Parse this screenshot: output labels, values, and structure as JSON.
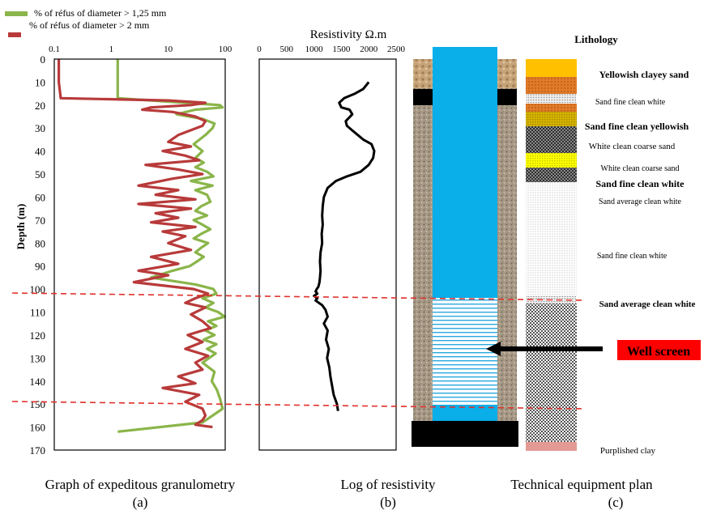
{
  "legend": {
    "green_label": "% of  réfus  of diameter  > 1,25 mm",
    "red_label": "% of réfus of diameter > 2 mm",
    "green_color": "#8ab54a",
    "red_color": "#b83a3a"
  },
  "depth_axis": {
    "label": "Depth (m)",
    "ticks": [
      "0",
      "10",
      "20",
      "30",
      "40",
      "50",
      "60",
      "70",
      "80",
      "90",
      "100",
      "110",
      "120",
      "130",
      "140",
      "150",
      "160",
      "170"
    ]
  },
  "gran_axis": {
    "ticks": [
      "0.1",
      "1",
      "10",
      "100"
    ]
  },
  "res_axis": {
    "title": "Resistivity Ω.m",
    "ticks": [
      "0",
      "500",
      "1000",
      "1500",
      "2000",
      "2500"
    ]
  },
  "captions": {
    "a_title": "Graph of expeditous granulometry",
    "a_letter": "(a)",
    "b_title": "Log of resistivity",
    "b_letter": "(b)",
    "c_title": "Technical equipment plan",
    "c_letter": "(c)"
  },
  "lithology": {
    "title": "Lithology",
    "labels": [
      "Yellowish clayey sand",
      "Sand fine clean white",
      "Sand fine clean yellowish",
      "White clean coarse sand",
      "White clean coarse sand",
      "Sand fine clean white",
      "Sand average clean white",
      "Sand fine clean white",
      "Sand average clean white",
      "Purplished clay"
    ]
  },
  "well_screen_label": "Well screen",
  "colors": {
    "casing": "#0aaee8",
    "well_screen_bg": "#ff0000",
    "dash": "#e0312b"
  },
  "chart_data": [
    {
      "type": "line",
      "title": "",
      "xlabel": "",
      "ylabel": "Depth (m)",
      "x_scale": "log",
      "xlim": [
        0.1,
        100
      ],
      "ylim": [
        170,
        0
      ],
      "series": [
        {
          "name": "% of  réfus  of diameter  > 1,25 mm",
          "x": [
            1.3,
            1.3,
            1.3,
            20,
            80,
            90,
            30,
            14,
            40,
            65,
            60,
            45,
            28,
            40,
            30,
            42,
            30,
            48,
            62,
            25,
            60,
            30,
            48,
            55,
            38,
            30,
            48,
            28,
            40,
            55,
            38,
            28,
            50,
            38,
            30,
            42,
            32,
            24,
            12,
            5,
            30,
            62,
            70,
            40,
            62,
            45,
            75,
            98,
            50,
            70,
            45,
            65,
            42,
            70,
            48,
            68,
            40,
            65,
            58,
            72,
            82,
            90,
            40,
            1.3
          ],
          "y": [
            0,
            10,
            17,
            19,
            20,
            21,
            22,
            24,
            26,
            28,
            30,
            33,
            37,
            40,
            43,
            45,
            47,
            49,
            51,
            53,
            55,
            57,
            59,
            62,
            64,
            66,
            68,
            70,
            72,
            74,
            76,
            78,
            80,
            82,
            84,
            86,
            88,
            90,
            92,
            95,
            98,
            100,
            102,
            104,
            106,
            108,
            110,
            112,
            114,
            116,
            118,
            120,
            122,
            124,
            126,
            128,
            132,
            136,
            140,
            144,
            148,
            152,
            158,
            162
          ]
        },
        {
          "name": "% of réfus of diameter > 2 mm",
          "x": [
            0.12,
            0.12,
            0.13,
            10,
            45,
            25,
            5,
            3.5,
            12,
            30,
            45,
            40,
            15,
            10,
            25,
            8,
            20,
            35,
            4,
            15,
            40,
            12,
            3,
            15,
            6,
            30,
            3,
            25,
            6,
            15,
            5,
            30,
            8,
            20,
            10,
            25,
            5,
            15,
            3,
            10,
            2.5,
            28,
            50,
            30,
            20,
            45,
            25,
            40,
            55,
            22,
            40,
            20,
            50,
            30,
            40,
            15,
            30,
            8,
            35,
            20,
            40,
            45,
            40,
            30,
            60
          ],
          "y": [
            0,
            10,
            17,
            18,
            19,
            20,
            21,
            22,
            23,
            25,
            27,
            29,
            33,
            36,
            38,
            40,
            42,
            44,
            46,
            48,
            50,
            52,
            55,
            57,
            59,
            61,
            63,
            65,
            67,
            69,
            71,
            73,
            75,
            77,
            80,
            83,
            86,
            89,
            92,
            94,
            97,
            100,
            102,
            104,
            106,
            108,
            111,
            114,
            117,
            120,
            123,
            126,
            129,
            132,
            135,
            138,
            141,
            143,
            146,
            149,
            152,
            155,
            157,
            159,
            160
          ]
        }
      ]
    },
    {
      "type": "line",
      "title": "Resistivity Ω.m",
      "xlabel": "",
      "ylabel": "Depth (m)",
      "xlim": [
        0,
        2500
      ],
      "ylim": [
        170,
        0
      ],
      "series": [
        {
          "name": "",
          "x": [
            2000,
            1900,
            1750,
            1550,
            1460,
            1500,
            1650,
            1700,
            1580,
            1600,
            1700,
            1800,
            1900,
            2050,
            2100,
            2080,
            2000,
            1850,
            1600,
            1400,
            1250,
            1180,
            1160,
            1150,
            1160,
            1140,
            1150,
            1120,
            1110,
            1120,
            1110,
            1100,
            1080,
            1050,
            1030,
            1060,
            1000,
            1060,
            1030,
            1150,
            1210,
            1250,
            1180,
            1250,
            1220,
            1270,
            1240,
            1280,
            1300,
            1330,
            1360,
            1420,
            1440
          ],
          "y": [
            10,
            13,
            15,
            17,
            19,
            21,
            22,
            24,
            27,
            29,
            31,
            33,
            35,
            37,
            40,
            43,
            46,
            49,
            51,
            53,
            56,
            60,
            64,
            68,
            72,
            76,
            80,
            84,
            88,
            92,
            95,
            97,
            99,
            100,
            101,
            102,
            103,
            104,
            105,
            107,
            109,
            112,
            115,
            118,
            122,
            126,
            130,
            134,
            138,
            142,
            146,
            150,
            153
          ]
        }
      ]
    }
  ]
}
